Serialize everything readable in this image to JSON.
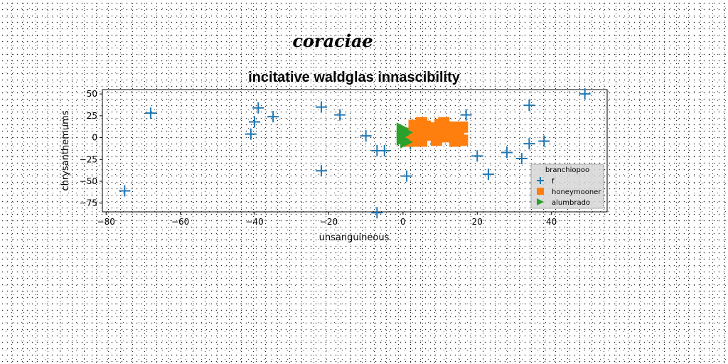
{
  "chart_data": {
    "type": "scatter",
    "suptitle": "coraciae",
    "title": "incitative waldglas innascibility",
    "xlabel": "unsanguineous",
    "ylabel": "chrysanthemums",
    "xlim": [
      -81,
      55
    ],
    "ylim": [
      -85,
      55
    ],
    "xticks": [
      -80,
      -60,
      -40,
      -20,
      0,
      20,
      40
    ],
    "yticks": [
      50,
      25,
      0,
      -25,
      -50,
      -75
    ],
    "grid": false,
    "legend": {
      "title": "branchiopoo",
      "placement": "lower-right"
    },
    "series": [
      {
        "name": "f",
        "marker": "plus",
        "color": "#1f77b4",
        "points": [
          [
            -75,
            -61
          ],
          [
            -68,
            28
          ],
          [
            -41,
            4
          ],
          [
            -40,
            18
          ],
          [
            -39,
            34
          ],
          [
            -35,
            24
          ],
          [
            -22,
            35
          ],
          [
            -22,
            -38
          ],
          [
            -17,
            26
          ],
          [
            -10,
            2
          ],
          [
            -7,
            -15
          ],
          [
            -5,
            -15
          ],
          [
            -7,
            -86
          ],
          [
            1,
            -44
          ],
          [
            2,
            -7
          ],
          [
            17,
            26
          ],
          [
            20,
            -21
          ],
          [
            23,
            -42
          ],
          [
            28,
            -17
          ],
          [
            32,
            -24
          ],
          [
            34,
            37
          ],
          [
            34,
            -7
          ],
          [
            38,
            -4
          ],
          [
            49,
            50
          ]
        ]
      },
      {
        "name": "honeymooner",
        "marker": "square",
        "color": "#ff7f0e",
        "points": [
          [
            1,
            5
          ],
          [
            3,
            14
          ],
          [
            3,
            1
          ],
          [
            4,
            8
          ],
          [
            5,
            -4
          ],
          [
            6,
            13
          ],
          [
            7,
            3
          ],
          [
            8,
            9
          ],
          [
            9,
            -3
          ],
          [
            10,
            15
          ],
          [
            11,
            6
          ],
          [
            12,
            1
          ],
          [
            13,
            12
          ],
          [
            14,
            -4
          ],
          [
            14,
            8
          ],
          [
            15,
            3
          ],
          [
            16,
            12
          ],
          [
            16,
            -3
          ],
          [
            2,
            -4
          ],
          [
            5,
            17
          ],
          [
            11,
            17
          ],
          [
            9,
            11
          ]
        ]
      },
      {
        "name": "alumbrado",
        "marker": "triangle-right",
        "color": "#2ca02c",
        "points": [
          [
            0,
            3
          ],
          [
            0,
            10
          ],
          [
            1,
            -5
          ],
          [
            1,
            6
          ],
          [
            0,
            -2
          ]
        ]
      }
    ]
  }
}
